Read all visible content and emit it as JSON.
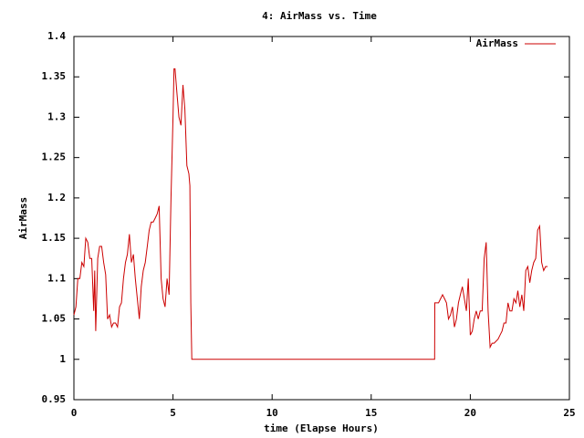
{
  "chart_data": {
    "type": "line",
    "title": "4: AirMass vs. Time",
    "xlabel": "time (Elapse Hours)",
    "ylabel": "AirMass",
    "xlim": [
      0,
      25
    ],
    "xticks": [
      0,
      5,
      10,
      15,
      20,
      25
    ],
    "ylim": [
      0.95,
      1.4
    ],
    "yticks": [
      0.95,
      1,
      1.05,
      1.1,
      1.15,
      1.2,
      1.25,
      1.3,
      1.35,
      1.4
    ],
    "legend": "top-right",
    "x": [
      0,
      0.1,
      0.2,
      0.3,
      0.4,
      0.5,
      0.6,
      0.7,
      0.8,
      0.9,
      1.0,
      1.05,
      1.1,
      1.2,
      1.3,
      1.4,
      1.5,
      1.6,
      1.7,
      1.8,
      1.9,
      2.0,
      2.1,
      2.2,
      2.3,
      2.4,
      2.5,
      2.6,
      2.7,
      2.8,
      2.9,
      3.0,
      3.1,
      3.2,
      3.3,
      3.4,
      3.5,
      3.6,
      3.7,
      3.8,
      3.9,
      4.0,
      4.1,
      4.2,
      4.3,
      4.4,
      4.5,
      4.6,
      4.7,
      4.8,
      4.9,
      5.0,
      5.05,
      5.1,
      5.2,
      5.3,
      5.4,
      5.5,
      5.6,
      5.7,
      5.8,
      5.85,
      5.9,
      5.95,
      18.2,
      18.21,
      18.4,
      18.6,
      18.7,
      18.8,
      18.9,
      19.0,
      19.1,
      19.2,
      19.3,
      19.4,
      19.5,
      19.6,
      19.7,
      19.8,
      19.9,
      20.0,
      20.1,
      20.2,
      20.3,
      20.4,
      20.5,
      20.6,
      20.7,
      20.8,
      20.9,
      21.0,
      21.1,
      21.2,
      21.4,
      21.5,
      21.6,
      21.7,
      21.8,
      21.9,
      22.0,
      22.1,
      22.2,
      22.3,
      22.4,
      22.5,
      22.6,
      22.7,
      22.8,
      22.9,
      23.0,
      23.1,
      23.2,
      23.3,
      23.4,
      23.5,
      23.6,
      23.7,
      23.8,
      23.9
    ],
    "series": [
      {
        "name": "AirMass",
        "color": "#cc0000",
        "values": [
          1.055,
          1.065,
          1.1,
          1.1,
          1.12,
          1.115,
          1.15,
          1.145,
          1.125,
          1.125,
          1.06,
          1.11,
          1.035,
          1.125,
          1.14,
          1.14,
          1.12,
          1.105,
          1.05,
          1.055,
          1.04,
          1.045,
          1.045,
          1.04,
          1.065,
          1.07,
          1.1,
          1.12,
          1.13,
          1.155,
          1.12,
          1.13,
          1.1,
          1.075,
          1.05,
          1.09,
          1.11,
          1.12,
          1.14,
          1.16,
          1.17,
          1.17,
          1.175,
          1.18,
          1.19,
          1.1,
          1.075,
          1.065,
          1.1,
          1.08,
          1.2,
          1.3,
          1.36,
          1.36,
          1.33,
          1.3,
          1.29,
          1.34,
          1.31,
          1.24,
          1.23,
          1.215,
          1.07,
          1.0,
          1.0,
          1.07,
          1.07,
          1.08,
          1.075,
          1.07,
          1.05,
          1.055,
          1.065,
          1.04,
          1.05,
          1.07,
          1.08,
          1.09,
          1.075,
          1.06,
          1.1,
          1.03,
          1.035,
          1.05,
          1.06,
          1.05,
          1.06,
          1.06,
          1.125,
          1.145,
          1.06,
          1.015,
          1.02,
          1.02,
          1.025,
          1.03,
          1.035,
          1.045,
          1.045,
          1.07,
          1.06,
          1.06,
          1.075,
          1.07,
          1.085,
          1.065,
          1.08,
          1.06,
          1.11,
          1.115,
          1.095,
          1.11,
          1.12,
          1.125,
          1.16,
          1.165,
          1.12,
          1.11,
          1.115,
          1.115
        ]
      }
    ]
  }
}
